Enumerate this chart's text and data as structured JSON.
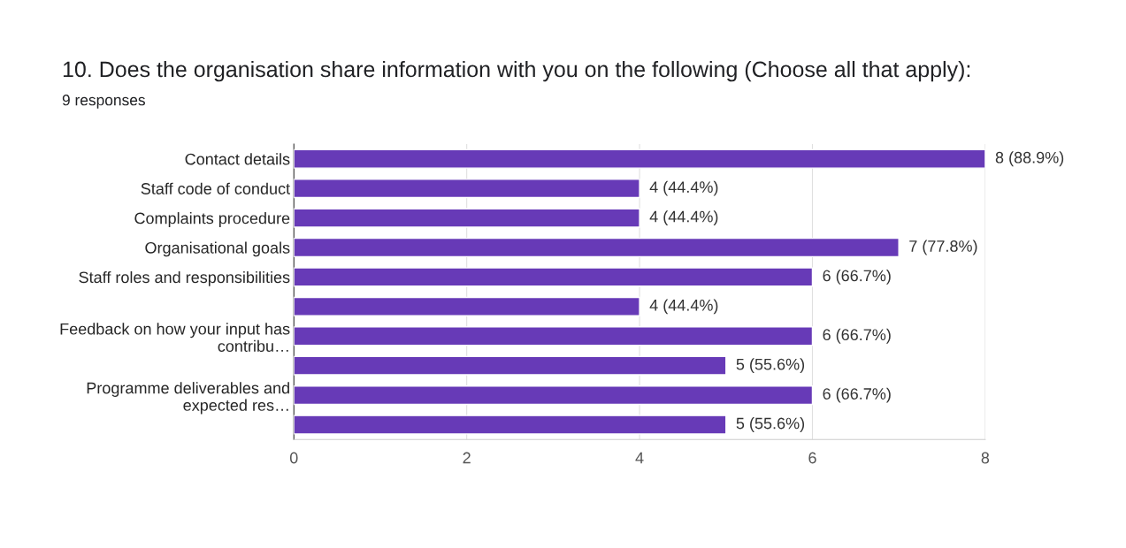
{
  "chart_data": {
    "type": "bar",
    "orientation": "horizontal",
    "title": "10. Does the organisation share information with you on the following (Choose all that apply):",
    "subtitle": "9 responses",
    "categories": [
      "Contact details",
      "Staff code of conduct",
      "Complaints procedure",
      "Organisational goals",
      "Staff roles and responsibilities",
      null,
      "Feedback on how your input has\ncontribu…",
      null,
      "Programme deliverables and\nexpected res…",
      null
    ],
    "values": [
      8,
      4,
      4,
      7,
      6,
      4,
      6,
      5,
      6,
      5
    ],
    "value_labels": [
      "8 (88.9%)",
      "4 (44.4%)",
      "4 (44.4%)",
      "7 (77.8%)",
      "6 (66.7%)",
      "4 (44.4%)",
      "6 (66.7%)",
      "5 (55.6%)",
      "6 (66.7%)",
      "5 (55.6%)"
    ],
    "color": "#673ab7",
    "xlim": [
      0,
      8
    ],
    "xticks": [
      0,
      2,
      4,
      6,
      8
    ],
    "grid": "x",
    "legend": false
  }
}
